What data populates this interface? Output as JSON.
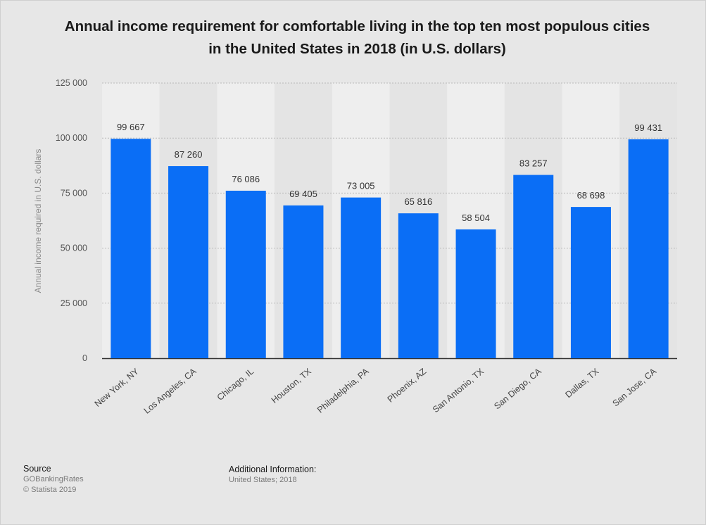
{
  "chart_data": {
    "type": "bar",
    "title": "Annual income requirement for comfortable living in the top ten most populous cities in the United States in 2018 (in U.S. dollars)",
    "categories": [
      "New York, NY",
      "Los Angeles, CA",
      "Chicago, IL",
      "Houston, TX",
      "Philadelphia, PA",
      "Phoenix, AZ",
      "San Antonio, TX",
      "San Diego, CA",
      "Dallas, TX",
      "San Jose, CA"
    ],
    "values": [
      99667,
      87260,
      76086,
      69405,
      73005,
      65816,
      58504,
      83257,
      68698,
      99431
    ],
    "value_labels": [
      "99 667",
      "87 260",
      "76 086",
      "69 405",
      "73 005",
      "65 816",
      "58 504",
      "83 257",
      "68 698",
      "99 431"
    ],
    "xlabel": "",
    "ylabel": "Annual income required in U.S. dollars",
    "ylim": [
      0,
      125000
    ],
    "yticks": [
      0,
      25000,
      50000,
      75000,
      100000,
      125000
    ],
    "ytick_labels": [
      "0",
      "25 000",
      "50 000",
      "75 000",
      "100 000",
      "125 000"
    ],
    "grid": true,
    "bar_color": "#0a6ef6"
  },
  "title_lines": [
    "Annual income requirement for comfortable living in the top ten most populous cities",
    "in the United States in 2018 (in U.S. dollars)"
  ],
  "footer": {
    "source_label": "Source",
    "source_lines": [
      "GOBankingRates",
      "© Statista 2019"
    ],
    "info_label": "Additional Information:",
    "info_line": "United States; 2018"
  }
}
